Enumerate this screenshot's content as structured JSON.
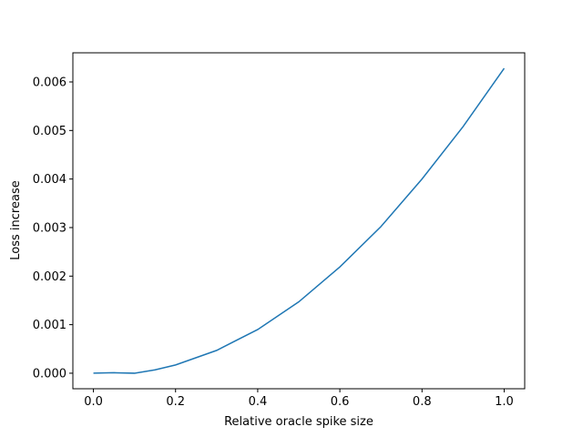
{
  "chart_data": {
    "type": "line",
    "x_label": "Relative oracle spike size",
    "y_label": "Loss increase",
    "x": [
      0,
      0.05,
      0.1,
      0.15,
      0.2,
      0.3,
      0.4,
      0.5,
      0.6,
      0.7,
      0.8,
      0.9,
      1.0
    ],
    "series": [
      {
        "name": "loss",
        "color": "#1f77b4",
        "values": [
          0,
          1e-05,
          0,
          7e-05,
          0.00017,
          0.00047,
          0.0009,
          0.00147,
          0.00219,
          0.00302,
          0.004,
          0.00508,
          0.00628
        ]
      }
    ],
    "xlim": [
      -0.05,
      1.05
    ],
    "ylim": [
      -0.00032,
      0.0066
    ],
    "xticks": [
      {
        "value": 0,
        "label": "0.0"
      },
      0.2,
      0.4,
      0.6,
      0.8,
      {
        "value": 1,
        "label": "1.0"
      }
    ],
    "yticks": [
      {
        "value": 0,
        "label": "0.000"
      },
      0.001,
      0.002,
      0.003,
      0.004,
      0.005,
      0.006
    ],
    "grid": false
  }
}
